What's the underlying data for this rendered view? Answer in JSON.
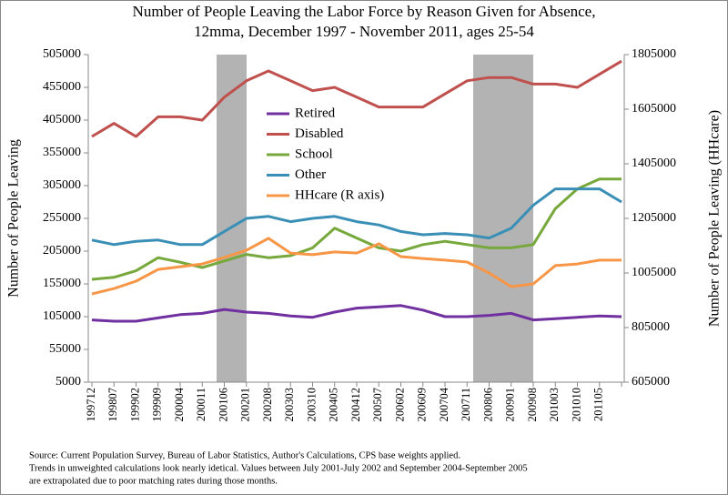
{
  "chart_data": {
    "type": "line",
    "title": "Number of People Leaving the Labor Force by Reason Given for Absence,",
    "subtitle": "12mma, December 1997 - November 2011, ages 25-54",
    "ylabel": "Number of People Leaving",
    "y2label": "Number of People Leaving (HHcare)",
    "categories": [
      "199712",
      "199807",
      "199902",
      "199909",
      "200004",
      "200011",
      "200106",
      "200201",
      "200208",
      "200303",
      "200310",
      "200405",
      "200412",
      "200507",
      "200602",
      "200609",
      "200704",
      "200711",
      "200806",
      "200901",
      "200908",
      "201003",
      "201010",
      "201105",
      null
    ],
    "ylim": [
      5000,
      505000
    ],
    "yticks": [
      5000,
      55000,
      105000,
      155000,
      205000,
      255000,
      305000,
      355000,
      405000,
      455000,
      505000
    ],
    "y2lim": [
      605000,
      1805000
    ],
    "y2ticks": [
      605000,
      805000,
      1005000,
      1205000,
      1405000,
      1605000,
      1805000
    ],
    "series": [
      {
        "name": "Retired",
        "color": "#7030a0",
        "values": [
          100000,
          98000,
          98000,
          103000,
          108000,
          110000,
          116000,
          112000,
          110000,
          106000,
          104000,
          112000,
          118000,
          120000,
          122000,
          115000,
          105000,
          105000,
          107000,
          110000,
          100000,
          102000,
          104000,
          106000,
          105000
        ]
      },
      {
        "name": "Disabled",
        "color": "#c0504d",
        "values": [
          380000,
          400000,
          380000,
          410000,
          410000,
          405000,
          440000,
          465000,
          480000,
          465000,
          450000,
          455000,
          440000,
          425000,
          425000,
          425000,
          445000,
          465000,
          470000,
          470000,
          460000,
          460000,
          455000,
          475000,
          495000
        ]
      },
      {
        "name": "School",
        "color": "#77a83c",
        "values": [
          162000,
          165000,
          175000,
          195000,
          188000,
          180000,
          190000,
          200000,
          195000,
          198000,
          210000,
          240000,
          225000,
          210000,
          205000,
          215000,
          220000,
          215000,
          210000,
          210000,
          215000,
          270000,
          300000,
          315000,
          315000
        ]
      },
      {
        "name": "Other",
        "color": "#3a8fb7",
        "values": [
          222000,
          215000,
          220000,
          222000,
          215000,
          215000,
          235000,
          255000,
          258000,
          250000,
          255000,
          258000,
          250000,
          245000,
          235000,
          230000,
          232000,
          230000,
          225000,
          240000,
          275000,
          300000,
          300000,
          300000,
          280000
        ]
      },
      {
        "name": "HHcare (R axis)",
        "color": "#f79646",
        "axis": "y2",
        "values": [
          928000,
          948000,
          975000,
          1018000,
          1028000,
          1038000,
          1062000,
          1088000,
          1132000,
          1078000,
          1072000,
          1082000,
          1078000,
          1112000,
          1065000,
          1058000,
          1052000,
          1045000,
          1005000,
          955000,
          965000,
          1032000,
          1038000,
          1052000,
          1052000
        ]
      }
    ],
    "notes": [
      "Source: Current Population Survey,  Bureau of Labor Statistics, Author's Calculations, CPS base weights  applied.",
      "Trends in unweighted calculations look nearly idetical.  Values between July 2001-July 2002 and September 2004-September 2005",
      "are extrapolated due to poor matching rates during those months."
    ]
  }
}
